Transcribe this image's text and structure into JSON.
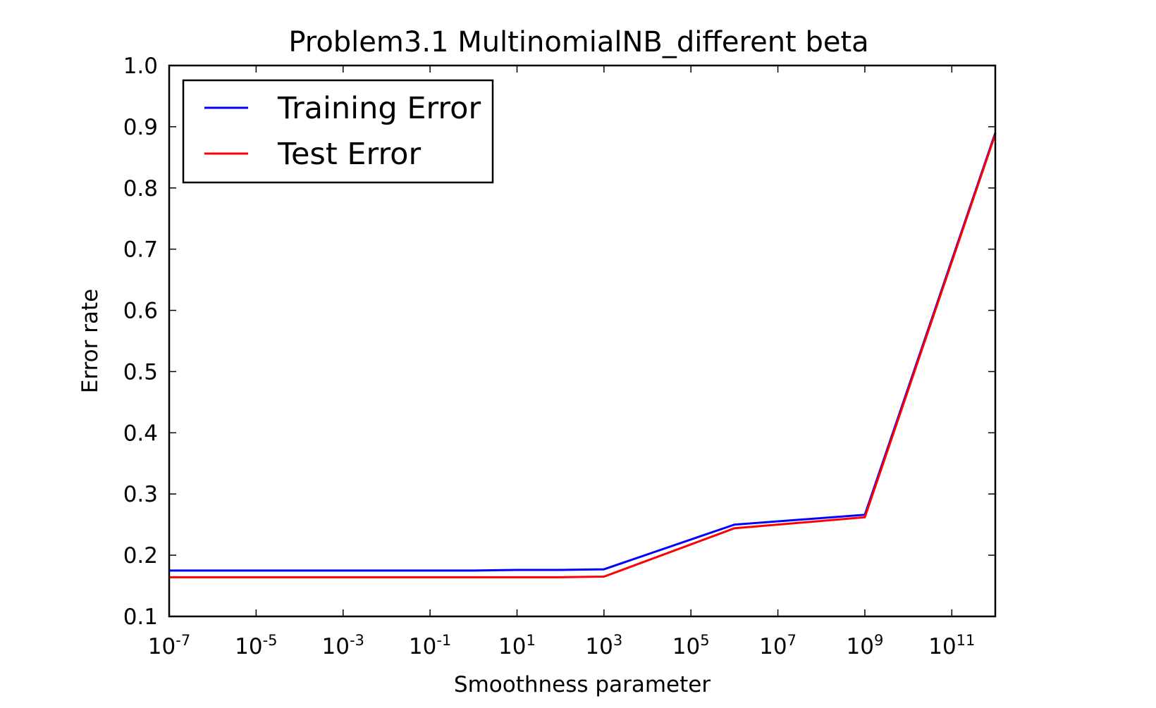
{
  "chart_data": {
    "type": "line",
    "title": "Problem3.1 MultinomialNB_different beta",
    "xlabel": "Smoothness parameter",
    "ylabel": "Error rate",
    "x_scale": "log",
    "xlim": [
      1e-07,
      1000000000000.0
    ],
    "ylim": [
      0.1,
      1.0
    ],
    "x": [
      1e-07,
      1e-06,
      1e-05,
      0.0001,
      0.001,
      0.01,
      0.1,
      1,
      10,
      100,
      1000,
      1000000.0,
      1000000000.0,
      1000000000000.0
    ],
    "series": [
      {
        "name": "Training Error",
        "color": "#0000ff",
        "values": [
          0.175,
          0.175,
          0.175,
          0.175,
          0.175,
          0.175,
          0.175,
          0.175,
          0.176,
          0.176,
          0.177,
          0.25,
          0.266,
          0.89
        ]
      },
      {
        "name": "Test Error",
        "color": "#ff0000",
        "values": [
          0.164,
          0.164,
          0.164,
          0.164,
          0.164,
          0.164,
          0.164,
          0.164,
          0.164,
          0.164,
          0.165,
          0.244,
          0.262,
          0.888
        ]
      }
    ],
    "x_ticks": [
      {
        "base": "10",
        "exp": "-7",
        "value": 1e-07
      },
      {
        "base": "10",
        "exp": "-5",
        "value": 1e-05
      },
      {
        "base": "10",
        "exp": "-3",
        "value": 0.001
      },
      {
        "base": "10",
        "exp": "-1",
        "value": 0.1
      },
      {
        "base": "10",
        "exp": "1",
        "value": 10.0
      },
      {
        "base": "10",
        "exp": "3",
        "value": 1000.0
      },
      {
        "base": "10",
        "exp": "5",
        "value": 100000.0
      },
      {
        "base": "10",
        "exp": "7",
        "value": 10000000.0
      },
      {
        "base": "10",
        "exp": "9",
        "value": 1000000000.0
      },
      {
        "base": "10",
        "exp": "11",
        "value": 100000000000.0
      }
    ],
    "y_ticks": [
      "0.1",
      "0.2",
      "0.3",
      "0.4",
      "0.5",
      "0.6",
      "0.7",
      "0.8",
      "0.9",
      "1.0"
    ],
    "grid": false,
    "legend_position": "upper-left"
  }
}
